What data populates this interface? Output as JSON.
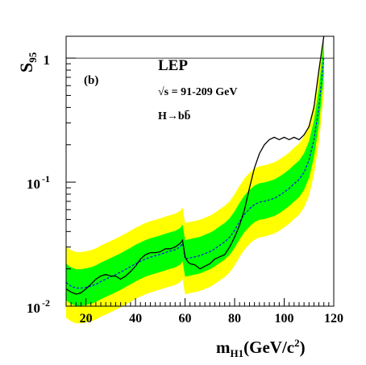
{
  "chart_data": {
    "type": "line",
    "panel_label": "(b)",
    "annotations": [
      "LEP",
      "√s = 91-209 GeV",
      "H→bb̄"
    ],
    "xlabel_main": "m",
    "xlabel_sub": "H1",
    "xlabel_rest": "(GeV/c",
    "xlabel_sup": "2",
    "xlabel_end": ")",
    "ylabel_main": "S",
    "ylabel_sub": "95",
    "x_scale": "linear",
    "y_scale": "log",
    "xlim": [
      12,
      120
    ],
    "ylim": [
      0.01,
      1.5
    ],
    "x_ticks": [
      20,
      40,
      60,
      80,
      100,
      120
    ],
    "y_ticks": [
      {
        "value": 1,
        "base": "1",
        "exp": ""
      },
      {
        "value": 0.1,
        "base": "10",
        "exp": "-1"
      },
      {
        "value": 0.01,
        "base": "10",
        "exp": "-2"
      }
    ],
    "reference_line": 1,
    "colors": {
      "band_2sigma": "#ffff00",
      "band_1sigma": "#00ff00",
      "observed": "#000000",
      "expected": "#0000ff"
    },
    "series": [
      {
        "role": "observed",
        "x": [
          12,
          14,
          16,
          18,
          20,
          22,
          24,
          26,
          28,
          30,
          32,
          34,
          36,
          38,
          40,
          42,
          44,
          46,
          48,
          50,
          52,
          54,
          56,
          58,
          59,
          60,
          61,
          62,
          64,
          66,
          68,
          70,
          72,
          74,
          76,
          78,
          80,
          82,
          84,
          86,
          88,
          90,
          92,
          94,
          96,
          98,
          100,
          102,
          104,
          106,
          108,
          110,
          112,
          114,
          116
        ],
        "y": [
          0.0138,
          0.013,
          0.0125,
          0.0128,
          0.0138,
          0.015,
          0.0165,
          0.0175,
          0.018,
          0.0175,
          0.0175,
          0.0165,
          0.0175,
          0.019,
          0.021,
          0.024,
          0.026,
          0.027,
          0.027,
          0.0275,
          0.029,
          0.029,
          0.03,
          0.032,
          0.034,
          0.025,
          0.023,
          0.022,
          0.0215,
          0.02,
          0.021,
          0.022,
          0.024,
          0.025,
          0.026,
          0.03,
          0.036,
          0.045,
          0.06,
          0.09,
          0.13,
          0.17,
          0.2,
          0.22,
          0.23,
          0.22,
          0.23,
          0.22,
          0.23,
          0.22,
          0.24,
          0.28,
          0.4,
          0.8,
          1.6
        ]
      },
      {
        "role": "expected",
        "x": [
          12,
          14,
          16,
          18,
          20,
          22,
          24,
          26,
          28,
          30,
          32,
          34,
          36,
          38,
          40,
          42,
          44,
          46,
          48,
          50,
          52,
          54,
          56,
          58,
          59,
          60,
          62,
          64,
          66,
          68,
          70,
          72,
          74,
          76,
          78,
          80,
          82,
          84,
          86,
          88,
          90,
          92,
          94,
          96,
          98,
          100,
          102,
          104,
          106,
          108,
          110,
          112,
          114,
          116
        ],
        "y": [
          0.0155,
          0.0145,
          0.014,
          0.014,
          0.0142,
          0.0145,
          0.015,
          0.0158,
          0.0165,
          0.0172,
          0.018,
          0.0188,
          0.0198,
          0.0208,
          0.022,
          0.023,
          0.024,
          0.0248,
          0.0255,
          0.0262,
          0.027,
          0.0278,
          0.0285,
          0.03,
          0.032,
          0.024,
          0.0245,
          0.025,
          0.0255,
          0.0265,
          0.0275,
          0.029,
          0.031,
          0.033,
          0.036,
          0.041,
          0.048,
          0.055,
          0.061,
          0.066,
          0.069,
          0.07,
          0.072,
          0.074,
          0.078,
          0.083,
          0.089,
          0.097,
          0.105,
          0.12,
          0.15,
          0.22,
          0.4,
          1.0
        ]
      }
    ]
  }
}
